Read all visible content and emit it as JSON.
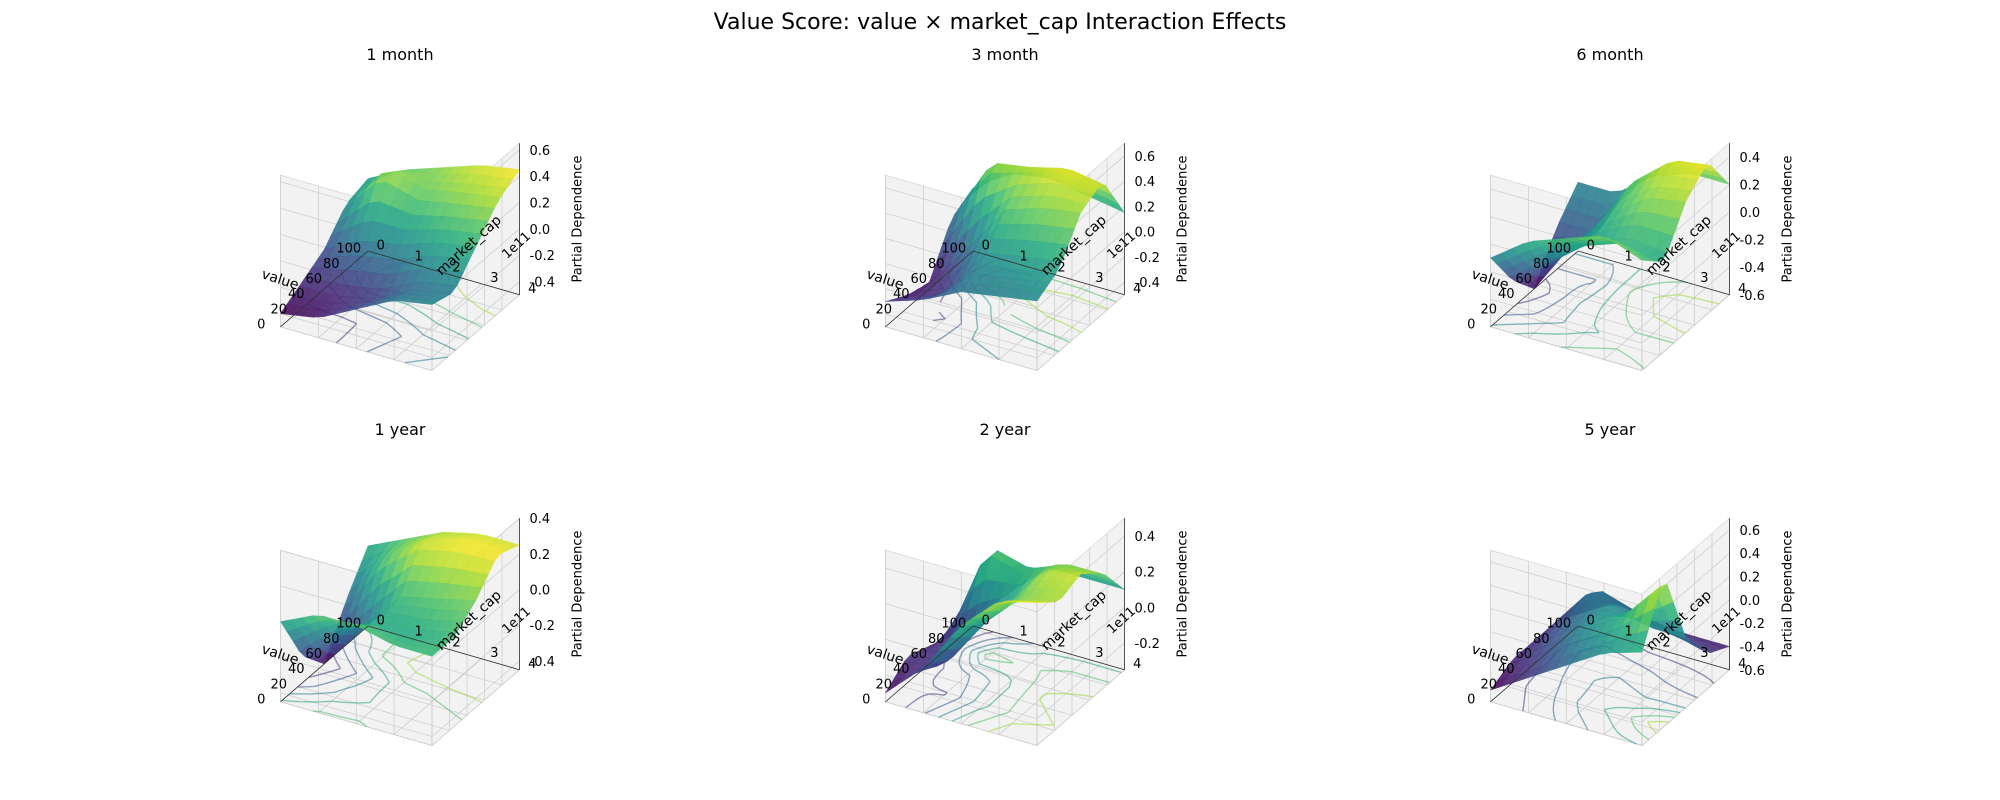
{
  "figure_title": "Value Score: value × market_cap Interaction Effects",
  "chart_data": [
    {
      "type": "surface3d",
      "title": "1 month",
      "xlabel": "value",
      "ylabel": "market_cap",
      "y_offset_label": "1e11",
      "zlabel": "Partial Dependence",
      "xlim": [
        0,
        100
      ],
      "ylim": [
        0,
        4
      ],
      "zlim": [
        -0.5,
        0.65
      ],
      "xticks": [
        "0",
        "20",
        "40",
        "60",
        "80",
        "100"
      ],
      "yticks": [
        "0",
        "1",
        "2",
        "3",
        "4"
      ],
      "zticks": [
        "-0.4",
        "-0.2",
        "0.0",
        "0.2",
        "0.4",
        "0.6"
      ],
      "x": [
        0,
        25,
        50,
        75,
        100
      ],
      "y": [
        0,
        1,
        2,
        3,
        4
      ],
      "z": [
        [
          -0.4,
          -0.3,
          -0.2,
          0.0,
          0.05
        ],
        [
          -0.35,
          -0.3,
          -0.05,
          0.35,
          0.2
        ],
        [
          -0.2,
          -0.25,
          0.0,
          0.25,
          0.3
        ],
        [
          -0.05,
          -0.1,
          0.1,
          0.3,
          0.4
        ],
        [
          0.0,
          -0.05,
          0.15,
          0.35,
          0.45
        ]
      ],
      "colormap": "viridis",
      "contours_on_floor": true,
      "grid": true
    },
    {
      "type": "surface3d",
      "title": "3 month",
      "xlabel": "value",
      "ylabel": "market_cap",
      "y_offset_label": "1e11",
      "zlabel": "Partial Dependence",
      "xlim": [
        0,
        100
      ],
      "ylim": [
        0,
        4
      ],
      "zlim": [
        -0.5,
        0.7
      ],
      "xticks": [
        "0",
        "20",
        "40",
        "60",
        "80",
        "100"
      ],
      "yticks": [
        "0",
        "1",
        "2",
        "3",
        "4"
      ],
      "zticks": [
        "-0.4",
        "-0.2",
        "0.0",
        "0.2",
        "0.4",
        "0.6"
      ],
      "x": [
        0,
        25,
        50,
        75,
        100
      ],
      "y": [
        0,
        1,
        2,
        3,
        4
      ],
      "z": [
        [
          -0.3,
          -0.4,
          -0.45,
          -0.1,
          0.0
        ],
        [
          -0.2,
          -0.3,
          -0.1,
          0.45,
          0.2
        ],
        [
          -0.05,
          0.05,
          0.3,
          0.5,
          0.25
        ],
        [
          0.0,
          0.1,
          0.4,
          0.6,
          0.2
        ],
        [
          0.05,
          0.15,
          0.45,
          0.55,
          0.15
        ]
      ],
      "colormap": "viridis",
      "contours_on_floor": true,
      "grid": true
    },
    {
      "type": "surface3d",
      "title": "6 month",
      "xlabel": "value",
      "ylabel": "market_cap",
      "y_offset_label": "1e11",
      "zlabel": "Partial Dependence",
      "xlim": [
        0,
        100
      ],
      "ylim": [
        0,
        4
      ],
      "zlim": [
        -0.6,
        0.5
      ],
      "xticks": [
        "0",
        "20",
        "40",
        "60",
        "80",
        "100"
      ],
      "yticks": [
        "0",
        "1",
        "2",
        "3",
        "4"
      ],
      "zticks": [
        "-0.6",
        "-0.4",
        "-0.2",
        "0.0",
        "0.2",
        "0.4"
      ],
      "x": [
        0,
        25,
        50,
        75,
        100
      ],
      "y": [
        0,
        1,
        2,
        3,
        4
      ],
      "z": [
        [
          -0.1,
          -0.4,
          -0.6,
          -0.3,
          -0.1
        ],
        [
          0.1,
          -0.2,
          -0.2,
          -0.3,
          -0.1
        ],
        [
          0.2,
          0.0,
          0.1,
          0.2,
          0.1
        ],
        [
          0.3,
          0.1,
          0.3,
          0.45,
          0.2
        ],
        [
          0.2,
          0.05,
          0.35,
          0.5,
          0.2
        ]
      ],
      "colormap": "viridis",
      "contours_on_floor": true,
      "grid": true
    },
    {
      "type": "surface3d",
      "title": "1 year",
      "xlabel": "value",
      "ylabel": "market_cap",
      "y_offset_label": "1e11",
      "zlabel": "Partial Dependence",
      "xlim": [
        0,
        100
      ],
      "ylim": [
        0,
        4
      ],
      "zlim": [
        -0.45,
        0.4
      ],
      "xticks": [
        "0",
        "20",
        "40",
        "60",
        "80",
        "100"
      ],
      "yticks": [
        "0",
        "1",
        "2",
        "3",
        "4"
      ],
      "zticks": [
        "-0.4",
        "-0.2",
        "0.0",
        "0.2",
        "0.4"
      ],
      "x": [
        0,
        25,
        50,
        75,
        100
      ],
      "y": [
        0,
        1,
        2,
        3,
        4
      ],
      "z": [
        [
          0.0,
          -0.3,
          -0.45,
          -0.2,
          0.0
        ],
        [
          0.1,
          -0.1,
          -0.2,
          0.1,
          0.1
        ],
        [
          0.1,
          0.0,
          0.05,
          0.25,
          0.2
        ],
        [
          0.05,
          0.0,
          0.1,
          0.3,
          0.25
        ],
        [
          0.05,
          0.05,
          0.15,
          0.3,
          0.25
        ]
      ],
      "colormap": "viridis",
      "contours_on_floor": true,
      "grid": true
    },
    {
      "type": "surface3d",
      "title": "2 year",
      "xlabel": "value",
      "ylabel": "market_cap",
      "y_offset_label": "1e11",
      "zlabel": "Partial Dependence",
      "xlim": [
        0,
        100
      ],
      "ylim": [
        0,
        4
      ],
      "zlim": [
        -0.35,
        0.5
      ],
      "xticks": [
        "0",
        "20",
        "40",
        "60",
        "80",
        "100"
      ],
      "yticks": [
        "0",
        "1",
        "2",
        "3",
        "4"
      ],
      "zticks": [
        "-0.2",
        "0.0",
        "0.2",
        "0.4"
      ],
      "x": [
        0,
        25,
        50,
        75,
        100
      ],
      "y": [
        0,
        1,
        2,
        3,
        4
      ],
      "z": [
        [
          -0.3,
          -0.2,
          -0.25,
          -0.3,
          -0.3
        ],
        [
          -0.1,
          -0.2,
          -0.1,
          0.3,
          -0.1
        ],
        [
          0.2,
          0.1,
          0.1,
          0.2,
          0.1
        ],
        [
          0.4,
          0.3,
          0.35,
          0.3,
          0.1
        ],
        [
          0.45,
          0.35,
          0.4,
          0.3,
          0.1
        ]
      ],
      "colormap": "viridis",
      "contours_on_floor": true,
      "grid": true
    },
    {
      "type": "surface3d",
      "title": "5 year",
      "xlabel": "value",
      "ylabel": "market_cap",
      "y_offset_label": "1e11",
      "zlabel": "Partial Dependence",
      "xlim": [
        0,
        100
      ],
      "ylim": [
        0,
        4
      ],
      "zlim": [
        -0.6,
        0.7
      ],
      "xticks": [
        "0",
        "20",
        "40",
        "60",
        "80",
        "100"
      ],
      "yticks": [
        "0",
        "1",
        "2",
        "3",
        "4"
      ],
      "zticks": [
        "-0.6",
        "-0.4",
        "-0.2",
        "0.0",
        "0.2",
        "0.4",
        "0.6"
      ],
      "x": [
        0,
        25,
        50,
        75,
        100
      ],
      "y": [
        0,
        1,
        2,
        3,
        4
      ],
      "z": [
        [
          -0.5,
          -0.4,
          -0.4,
          -0.4,
          -0.5
        ],
        [
          -0.3,
          -0.2,
          -0.1,
          0.0,
          -0.3
        ],
        [
          -0.1,
          0.1,
          0.1,
          -0.1,
          -0.4
        ],
        [
          0.1,
          0.3,
          0.0,
          -0.2,
          -0.4
        ],
        [
          0.2,
          0.7,
          0.0,
          -0.3,
          -0.4
        ]
      ],
      "colormap": "viridis",
      "contours_on_floor": true,
      "grid": true
    }
  ]
}
